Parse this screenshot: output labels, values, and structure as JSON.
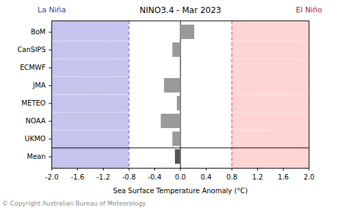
{
  "chart_data": {
    "type": "bar",
    "orientation": "horizontal",
    "title": "NINO3.4 - Mar 2023",
    "xlabel": "Sea Surface Temperature Anomaly (°C)",
    "categories": [
      "BoM",
      "CanSIPS",
      "ECMWF",
      "JMA",
      "METEO",
      "NOAA",
      "UKMO",
      "Mean"
    ],
    "values": [
      0.22,
      -0.12,
      null,
      -0.25,
      -0.05,
      -0.3,
      -0.12,
      -0.08
    ],
    "colors": [
      "#999999",
      "#999999",
      "#999999",
      "#999999",
      "#999999",
      "#999999",
      "#999999",
      "#555555"
    ],
    "xlim": [
      -2,
      2
    ],
    "xticks": [
      {
        "value": -2,
        "label": "-2.0"
      },
      -1.6,
      -1.2,
      -0.8,
      -0.4,
      {
        "value": 0,
        "label": "0.0"
      },
      0.4,
      0.8,
      1.2,
      1.6,
      {
        "value": 2,
        "label": "2.0"
      }
    ],
    "grid": false,
    "regions": [
      {
        "label": "La Niña",
        "range": [
          -2,
          -0.8
        ],
        "color": "#c4c4ec"
      },
      {
        "label": "El Niño",
        "range": [
          0.8,
          2
        ],
        "color": "#ffd4d4"
      }
    ],
    "caption": "© Copyright Australian Bureau of Meteorology"
  }
}
